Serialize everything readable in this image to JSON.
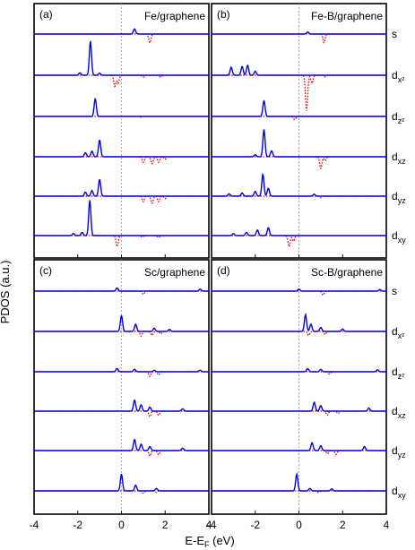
{
  "figure": {
    "ylabel": "PDOS (a.u.)",
    "xlabel_main": "E-E",
    "xlabel_sub": "F",
    "xlabel_unit": " (eV)",
    "xticks": [
      "-4",
      "-2",
      "0",
      "2",
      "4"
    ],
    "orbitals": [
      {
        "base": "s",
        "sub": ""
      },
      {
        "base": "d",
        "sub": "x²"
      },
      {
        "base": "d",
        "sub": "z²"
      },
      {
        "base": "d",
        "sub": "xz"
      },
      {
        "base": "d",
        "sub": "yz"
      },
      {
        "base": "d",
        "sub": "xy"
      }
    ]
  },
  "colors": {
    "spin_up": "#0000ee",
    "spin_down": "#ee0000",
    "fermi_line": "#9a9a9a",
    "frame": "#000000"
  },
  "chart_data": [
    {
      "type": "line",
      "panel_label": "(a)",
      "title": "Fe/graphene",
      "xlim": [
        -4,
        4
      ],
      "fermi_level": 0,
      "curves": [
        {
          "orbital": "s",
          "up": [
            [
              0.6,
              0.13
            ]
          ],
          "down": [
            [
              1.3,
              0.22
            ]
          ]
        },
        {
          "orbital": "dx2",
          "up": [
            [
              -1.42,
              0.85
            ],
            [
              -1.9,
              0.06
            ],
            [
              -1.0,
              0.05
            ]
          ],
          "down": [
            [
              -0.3,
              0.28
            ],
            [
              -0.15,
              0.2
            ],
            [
              1.0,
              0.05
            ],
            [
              1.8,
              0.05
            ]
          ]
        },
        {
          "orbital": "dz2",
          "up": [
            [
              -1.2,
              0.45
            ]
          ],
          "down": [
            [
              0.9,
              0.02
            ]
          ]
        },
        {
          "orbital": "dxz",
          "up": [
            [
              -1.0,
              0.42
            ],
            [
              -1.35,
              0.14
            ],
            [
              -1.65,
              0.1
            ]
          ],
          "down": [
            [
              1.0,
              0.14
            ],
            [
              1.4,
              0.18
            ],
            [
              1.7,
              0.14
            ],
            [
              2.0,
              0.06
            ]
          ]
        },
        {
          "orbital": "dyz",
          "up": [
            [
              -1.0,
              0.42
            ],
            [
              -1.35,
              0.14
            ],
            [
              -1.65,
              0.1
            ]
          ],
          "down": [
            [
              1.0,
              0.14
            ],
            [
              1.4,
              0.18
            ],
            [
              1.7,
              0.14
            ],
            [
              2.0,
              0.06
            ]
          ]
        },
        {
          "orbital": "dxy",
          "up": [
            [
              -1.45,
              0.88
            ],
            [
              -1.8,
              0.08
            ],
            [
              -2.2,
              0.05
            ]
          ],
          "down": [
            [
              -0.2,
              0.28
            ],
            [
              0.95,
              0.04
            ],
            [
              1.7,
              0.05
            ]
          ]
        }
      ]
    },
    {
      "type": "line",
      "panel_label": "(b)",
      "title": "Fe-B/graphene",
      "xlim": [
        -4,
        4
      ],
      "fermi_level": 0,
      "curves": [
        {
          "orbital": "s",
          "up": [
            [
              0.4,
              0.05
            ]
          ],
          "down": [
            [
              1.15,
              0.22
            ]
          ]
        },
        {
          "orbital": "dx2",
          "up": [
            [
              -3.1,
              0.2
            ],
            [
              -2.6,
              0.22
            ],
            [
              -2.35,
              0.25
            ],
            [
              -2.0,
              0.1
            ]
          ],
          "down": [
            [
              0.35,
              0.9
            ],
            [
              0.6,
              0.2
            ],
            [
              1.2,
              0.04
            ]
          ]
        },
        {
          "orbital": "dz2",
          "up": [
            [
              -1.6,
              0.4
            ]
          ],
          "down": [
            [
              -0.2,
              0.08
            ]
          ]
        },
        {
          "orbital": "dxz",
          "up": [
            [
              -1.6,
              0.68
            ],
            [
              -1.25,
              0.15
            ],
            [
              -2.0,
              0.05
            ]
          ],
          "down": [
            [
              1.0,
              0.3
            ],
            [
              1.2,
              0.1
            ]
          ]
        },
        {
          "orbital": "dyz",
          "up": [
            [
              -1.65,
              0.55
            ],
            [
              -1.4,
              0.2
            ],
            [
              -2.0,
              0.12
            ],
            [
              -2.6,
              0.08
            ],
            [
              -3.2,
              0.06
            ],
            [
              0.7,
              0.05
            ]
          ],
          "down": [
            [
              1.0,
              0.04
            ]
          ]
        },
        {
          "orbital": "dxy",
          "up": [
            [
              -1.4,
              0.2
            ],
            [
              -1.9,
              0.14
            ],
            [
              -2.4,
              0.08
            ],
            [
              -3.0,
              0.05
            ]
          ],
          "down": [
            [
              -0.45,
              0.28
            ],
            [
              -0.25,
              0.14
            ]
          ]
        }
      ]
    },
    {
      "type": "line",
      "panel_label": "(c)",
      "title": "Sc/graphene",
      "xlim": [
        -4,
        4
      ],
      "fermi_level": 0,
      "curves": [
        {
          "orbital": "s",
          "up": [
            [
              -0.2,
              0.08
            ],
            [
              3.6,
              0.05
            ]
          ],
          "down": [
            [
              1.0,
              0.08
            ]
          ]
        },
        {
          "orbital": "dx2",
          "up": [
            [
              0.0,
              0.4
            ],
            [
              0.65,
              0.18
            ],
            [
              1.5,
              0.08
            ],
            [
              2.2,
              0.05
            ]
          ],
          "down": [
            [
              0.9,
              0.12
            ],
            [
              1.4,
              0.1
            ],
            [
              1.8,
              0.06
            ]
          ]
        },
        {
          "orbital": "dz2",
          "up": [
            [
              -0.2,
              0.08
            ],
            [
              0.6,
              0.06
            ],
            [
              1.5,
              0.04
            ],
            [
              3.6,
              0.04
            ]
          ],
          "down": [
            [
              1.3,
              0.12
            ],
            [
              1.7,
              0.08
            ]
          ]
        },
        {
          "orbital": "dxz",
          "up": [
            [
              0.6,
              0.28
            ],
            [
              0.9,
              0.16
            ],
            [
              1.3,
              0.1
            ],
            [
              2.8,
              0.06
            ]
          ],
          "down": [
            [
              1.3,
              0.14
            ],
            [
              1.7,
              0.1
            ]
          ]
        },
        {
          "orbital": "dyz",
          "up": [
            [
              0.6,
              0.28
            ],
            [
              0.9,
              0.16
            ],
            [
              1.3,
              0.1
            ],
            [
              2.8,
              0.06
            ]
          ],
          "down": [
            [
              1.3,
              0.14
            ],
            [
              1.7,
              0.1
            ]
          ]
        },
        {
          "orbital": "dxy",
          "up": [
            [
              0.0,
              0.42
            ],
            [
              0.65,
              0.14
            ],
            [
              1.6,
              0.06
            ]
          ],
          "down": [
            [
              1.0,
              0.06
            ],
            [
              1.6,
              0.04
            ]
          ]
        }
      ]
    },
    {
      "type": "line",
      "panel_label": "(d)",
      "title": "Sc-B/graphene",
      "xlim": [
        -4,
        4
      ],
      "fermi_level": 0,
      "curves": [
        {
          "orbital": "s",
          "up": [
            [
              0.0,
              0.05
            ],
            [
              3.7,
              0.04
            ]
          ],
          "down": [
            [
              1.1,
              0.1
            ]
          ]
        },
        {
          "orbital": "dx2",
          "up": [
            [
              0.3,
              0.42
            ],
            [
              0.55,
              0.18
            ],
            [
              1.0,
              0.1
            ],
            [
              2.0,
              0.06
            ]
          ],
          "down": [
            [
              0.45,
              0.1
            ],
            [
              1.2,
              0.08
            ]
          ]
        },
        {
          "orbital": "dz2",
          "up": [
            [
              0.4,
              0.08
            ],
            [
              1.0,
              0.06
            ],
            [
              3.6,
              0.05
            ]
          ],
          "down": [
            [
              1.4,
              0.06
            ]
          ]
        },
        {
          "orbital": "dxz",
          "up": [
            [
              0.7,
              0.22
            ],
            [
              1.0,
              0.14
            ],
            [
              3.2,
              0.08
            ]
          ],
          "down": [
            [
              1.3,
              0.1
            ],
            [
              1.8,
              0.06
            ]
          ]
        },
        {
          "orbital": "dyz",
          "up": [
            [
              0.6,
              0.2
            ],
            [
              1.0,
              0.12
            ],
            [
              3.0,
              0.1
            ]
          ],
          "down": [
            [
              1.3,
              0.08
            ],
            [
              1.7,
              0.1
            ]
          ]
        },
        {
          "orbital": "dxy",
          "up": [
            [
              -0.1,
              0.42
            ],
            [
              0.5,
              0.06
            ],
            [
              1.5,
              0.05
            ]
          ],
          "down": [
            [
              0.9,
              0.04
            ]
          ]
        }
      ]
    }
  ]
}
